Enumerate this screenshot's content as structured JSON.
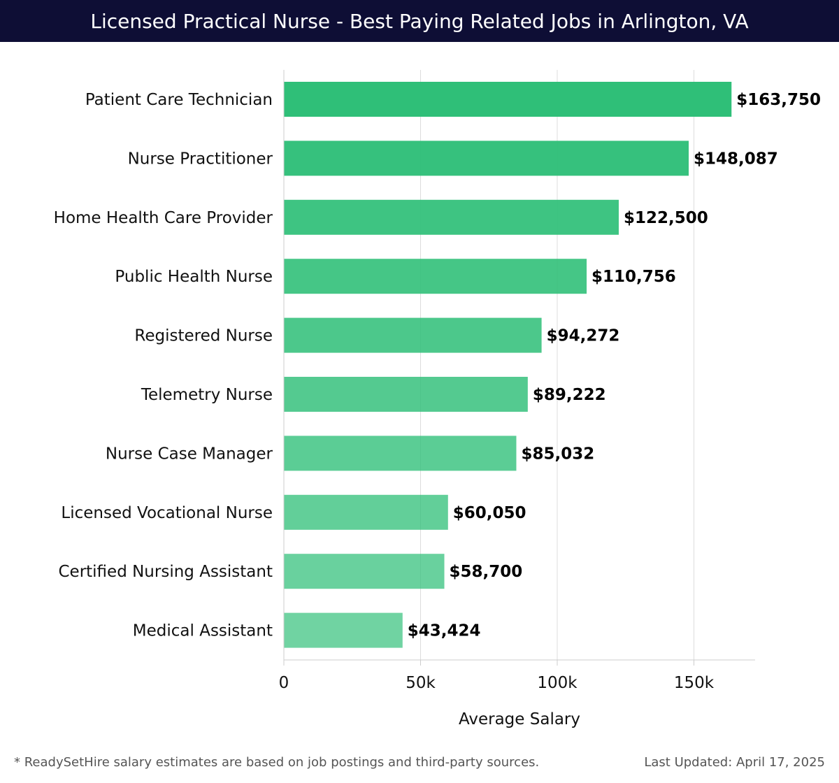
{
  "chart_data": {
    "type": "bar",
    "orientation": "horizontal",
    "title": "Licensed Practical Nurse - Best Paying Related Jobs in Arlington, VA",
    "xlabel": "Average Salary",
    "ylabel": "",
    "xlim": [
      0,
      172000
    ],
    "xticks": [
      {
        "value": 0,
        "label": "0"
      },
      {
        "value": 50000,
        "label": "50k"
      },
      {
        "value": 100000,
        "label": "100k"
      },
      {
        "value": 150000,
        "label": "150k"
      }
    ],
    "grid": "vertical",
    "categories": [
      "Patient Care Technician",
      "Nurse Practitioner",
      "Home Health Care Provider",
      "Public Health Nurse",
      "Registered Nurse",
      "Telemetry Nurse",
      "Nurse Case Manager",
      "Licensed Vocational Nurse",
      "Certified Nursing Assistant",
      "Medical Assistant"
    ],
    "values": [
      163750,
      148087,
      122500,
      110756,
      94272,
      89222,
      85032,
      60050,
      58700,
      43424
    ],
    "value_labels": [
      "$163,750",
      "$148,087",
      "$122,500",
      "$110,756",
      "$94,272",
      "$89,222",
      "$85,032",
      "$60,050",
      "$58,700",
      "$43,424"
    ],
    "colors": {
      "bar": "#2fbf78",
      "title_bg": "#0e0e35",
      "grid": "#dddddd"
    }
  },
  "footer": {
    "note": "* ReadySetHire salary estimates are based on job postings and third-party sources.",
    "updated": "Last Updated: April 17, 2025"
  }
}
